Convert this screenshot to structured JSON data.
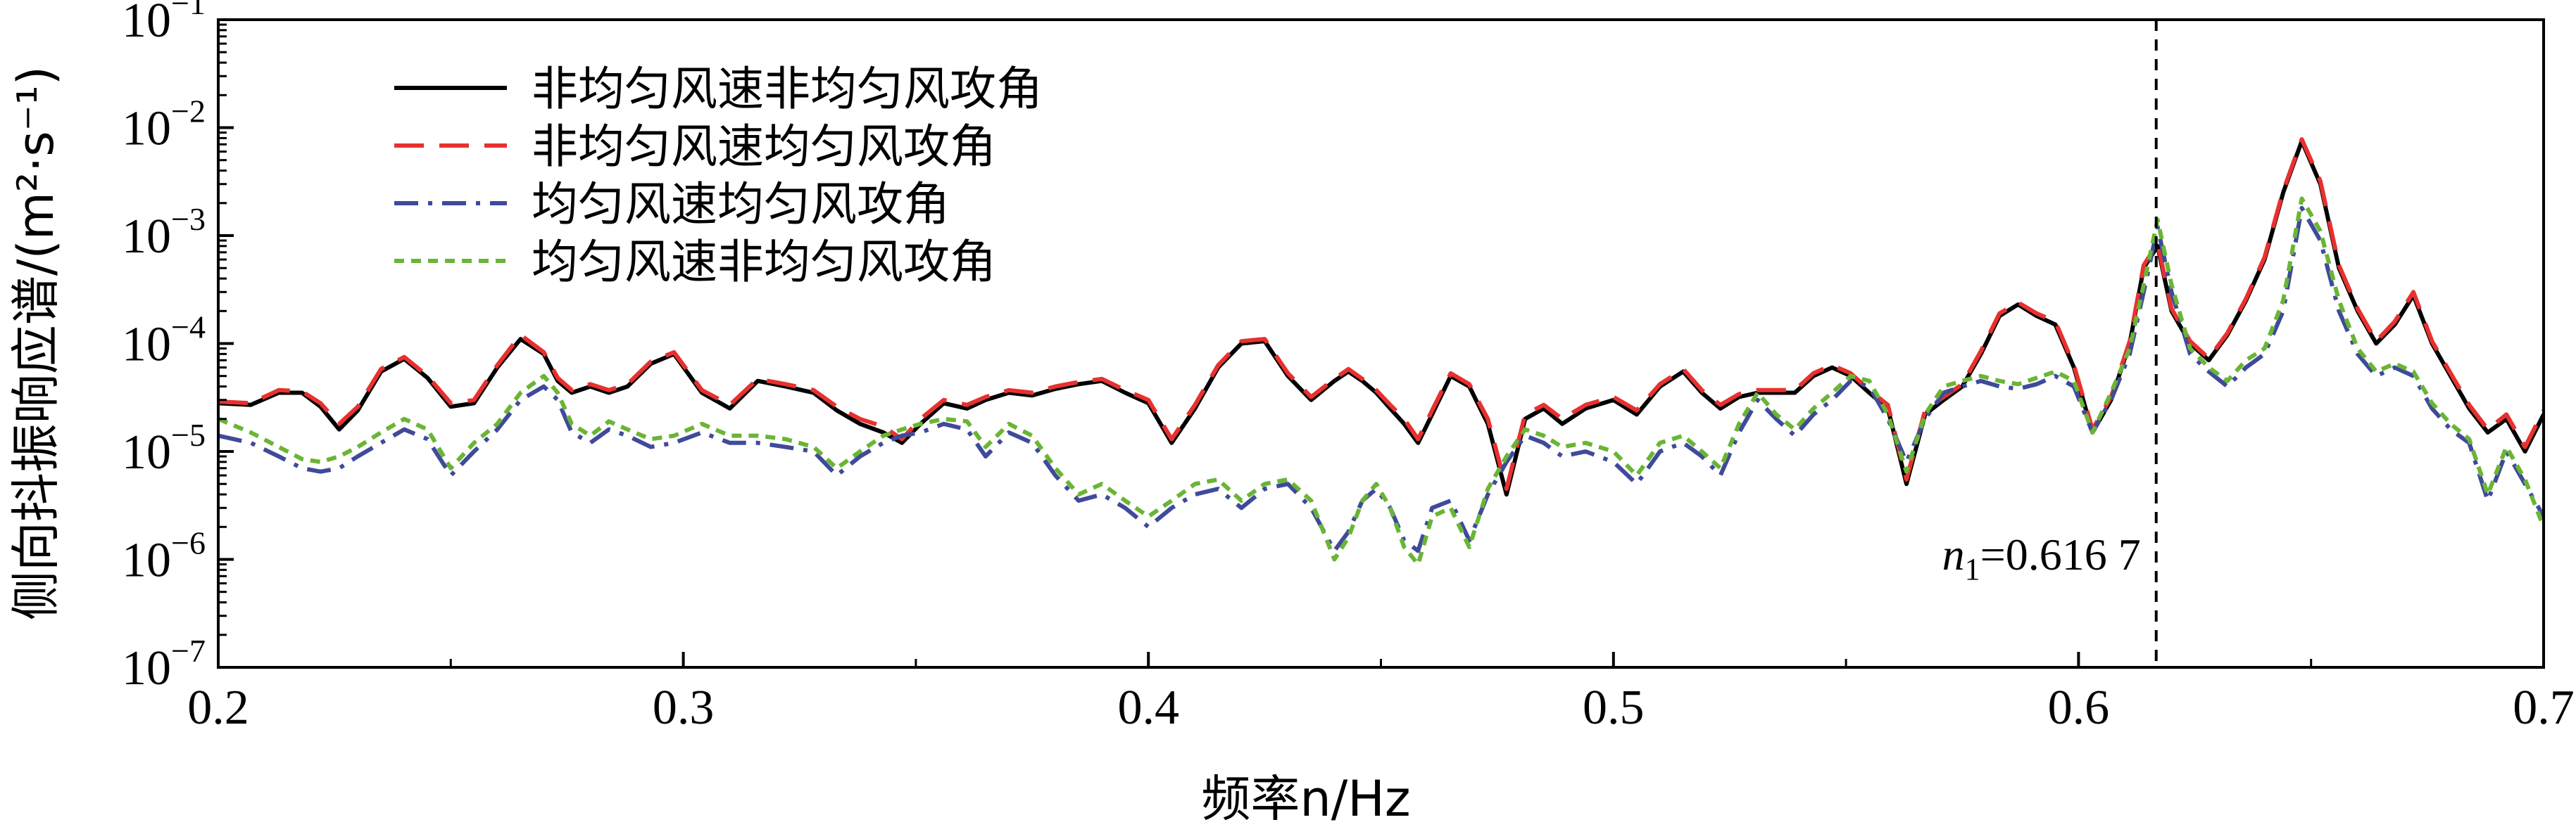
{
  "chart_data": {
    "type": "line",
    "xlabel": "频率n/Hz",
    "ylabel": "侧向抖振响应谱/(m²·s⁻¹)",
    "xlim": [
      0.2,
      0.7
    ],
    "ylim": [
      1e-07,
      0.1
    ],
    "yscale": "log",
    "xticks": [
      "0.2",
      "0.3",
      "0.4",
      "0.5",
      "0.6",
      "0.7"
    ],
    "yticks": [
      {
        "base": "10",
        "exp": "−7"
      },
      {
        "base": "10",
        "exp": "−6"
      },
      {
        "base": "10",
        "exp": "−5"
      },
      {
        "base": "10",
        "exp": "−4"
      },
      {
        "base": "10",
        "exp": "−3"
      },
      {
        "base": "10",
        "exp": "−2"
      },
      {
        "base": "10",
        "exp": "−1"
      }
    ],
    "legend_position": "top-left",
    "grid": false,
    "annotation": {
      "text_n": "n",
      "text_sub": "1",
      "text_value": "=0.616 7",
      "x": 0.6167
    },
    "series": [
      {
        "name": "非均匀风速非均匀风攻角",
        "color": "#000000",
        "dash": "solid",
        "x": [
          0.2,
          0.207,
          0.213,
          0.218,
          0.222,
          0.226,
          0.23,
          0.235,
          0.24,
          0.245,
          0.25,
          0.255,
          0.26,
          0.265,
          0.27,
          0.273,
          0.276,
          0.28,
          0.284,
          0.288,
          0.293,
          0.298,
          0.304,
          0.31,
          0.316,
          0.322,
          0.328,
          0.333,
          0.338,
          0.343,
          0.347,
          0.351,
          0.356,
          0.361,
          0.365,
          0.37,
          0.375,
          0.38,
          0.385,
          0.39,
          0.395,
          0.4,
          0.405,
          0.41,
          0.415,
          0.42,
          0.425,
          0.43,
          0.435,
          0.44,
          0.443,
          0.446,
          0.449,
          0.452,
          0.455,
          0.458,
          0.461,
          0.465,
          0.469,
          0.473,
          0.477,
          0.481,
          0.485,
          0.489,
          0.494,
          0.5,
          0.505,
          0.51,
          0.515,
          0.519,
          0.523,
          0.527,
          0.531,
          0.535,
          0.539,
          0.543,
          0.547,
          0.551,
          0.555,
          0.559,
          0.563,
          0.567,
          0.571,
          0.575,
          0.579,
          0.583,
          0.587,
          0.591,
          0.595,
          0.599,
          0.603,
          0.607,
          0.611,
          0.614,
          0.617,
          0.62,
          0.624,
          0.628,
          0.632,
          0.636,
          0.64,
          0.644,
          0.648,
          0.652,
          0.656,
          0.66,
          0.664,
          0.668,
          0.672,
          0.676,
          0.68,
          0.684,
          0.688,
          0.692,
          0.696,
          0.7
        ],
        "values": [
          2.8e-05,
          2.7e-05,
          3.5e-05,
          3.5e-05,
          2.6e-05,
          1.6e-05,
          2.4e-05,
          5.5e-05,
          7.2e-05,
          4.8e-05,
          2.6e-05,
          2.8e-05,
          6e-05,
          0.00011,
          8e-05,
          4.5e-05,
          3.5e-05,
          4e-05,
          3.5e-05,
          4e-05,
          6.5e-05,
          8e-05,
          3.5e-05,
          2.5e-05,
          4.5e-05,
          4e-05,
          3.5e-05,
          2.4e-05,
          1.8e-05,
          1.5e-05,
          1.2e-05,
          1.8e-05,
          2.8e-05,
          2.5e-05,
          3e-05,
          3.5e-05,
          3.3e-05,
          3.8e-05,
          4.2e-05,
          4.5e-05,
          3.5e-05,
          2.8e-05,
          1.2e-05,
          2.5e-05,
          6e-05,
          0.0001,
          0.000105,
          5e-05,
          3e-05,
          4.5e-05,
          5.5e-05,
          4.5e-05,
          3.5e-05,
          2.5e-05,
          1.8e-05,
          1.2e-05,
          2.2e-05,
          5e-05,
          4e-05,
          1.8e-05,
          4e-06,
          2e-05,
          2.5e-05,
          1.8e-05,
          2.5e-05,
          3e-05,
          2.2e-05,
          4e-05,
          5.5e-05,
          3.5e-05,
          2.5e-05,
          3.2e-05,
          3.5e-05,
          3.5e-05,
          3.5e-05,
          5e-05,
          6e-05,
          5e-05,
          3.5e-05,
          2.5e-05,
          5e-06,
          2.2e-05,
          3e-05,
          4e-05,
          8e-05,
          0.00018,
          0.00023,
          0.00018,
          0.00015,
          6e-05,
          1.5e-05,
          3e-05,
          0.0001,
          0.0005,
          0.0008,
          0.0002,
          0.0001,
          7e-05,
          0.00012,
          0.00025,
          0.0006,
          0.0025,
          0.0075,
          0.003,
          0.0005,
          0.0002,
          0.0001,
          0.00015,
          0.00028,
          0.0001,
          5e-05,
          2.5e-05,
          1.5e-05,
          2e-05,
          1e-05,
          2.2e-05
        ]
      },
      {
        "name": "非均匀风速均匀风攻角",
        "color": "#e8312f",
        "dash": "long-dash",
        "x": [
          0.2,
          0.207,
          0.213,
          0.218,
          0.222,
          0.226,
          0.23,
          0.235,
          0.24,
          0.245,
          0.25,
          0.255,
          0.26,
          0.265,
          0.27,
          0.273,
          0.276,
          0.28,
          0.284,
          0.288,
          0.293,
          0.298,
          0.304,
          0.31,
          0.316,
          0.322,
          0.328,
          0.333,
          0.338,
          0.343,
          0.347,
          0.351,
          0.356,
          0.361,
          0.365,
          0.37,
          0.375,
          0.38,
          0.385,
          0.39,
          0.395,
          0.4,
          0.405,
          0.41,
          0.415,
          0.42,
          0.425,
          0.43,
          0.435,
          0.44,
          0.443,
          0.446,
          0.449,
          0.452,
          0.455,
          0.458,
          0.461,
          0.465,
          0.469,
          0.473,
          0.477,
          0.481,
          0.485,
          0.489,
          0.494,
          0.5,
          0.505,
          0.51,
          0.515,
          0.519,
          0.523,
          0.527,
          0.531,
          0.535,
          0.539,
          0.543,
          0.547,
          0.551,
          0.555,
          0.559,
          0.563,
          0.567,
          0.571,
          0.575,
          0.579,
          0.583,
          0.587,
          0.591,
          0.595,
          0.599,
          0.603,
          0.607,
          0.611,
          0.614,
          0.617,
          0.62,
          0.624,
          0.628,
          0.632,
          0.636,
          0.64,
          0.644,
          0.648,
          0.652,
          0.656,
          0.66,
          0.664,
          0.668,
          0.672,
          0.676,
          0.68,
          0.684,
          0.688,
          0.692,
          0.696,
          0.7
        ],
        "values": [
          2.9e-05,
          2.8e-05,
          3.7e-05,
          3.6e-05,
          2.8e-05,
          1.8e-05,
          2.6e-05,
          5.8e-05,
          7.5e-05,
          5e-05,
          2.8e-05,
          3e-05,
          6.3e-05,
          0.00012,
          8.3e-05,
          4.8e-05,
          3.7e-05,
          4.2e-05,
          3.7e-05,
          4.2e-05,
          6.8e-05,
          8.3e-05,
          3.7e-05,
          2.7e-05,
          4.7e-05,
          4.2e-05,
          3.7e-05,
          2.6e-05,
          2e-05,
          1.7e-05,
          1.3e-05,
          2e-05,
          3e-05,
          2.7e-05,
          3.2e-05,
          3.7e-05,
          3.5e-05,
          4e-05,
          4.4e-05,
          4.7e-05,
          3.7e-05,
          3e-05,
          1.3e-05,
          2.7e-05,
          6.3e-05,
          0.000105,
          0.00011,
          5.3e-05,
          3.2e-05,
          4.7e-05,
          5.8e-05,
          4.7e-05,
          3.7e-05,
          2.7e-05,
          2e-05,
          1.3e-05,
          2.4e-05,
          5.3e-05,
          4.2e-05,
          2e-05,
          4.5e-06,
          2.2e-05,
          2.7e-05,
          2e-05,
          2.7e-05,
          3.2e-05,
          2.4e-05,
          4.2e-05,
          5.8e-05,
          3.7e-05,
          2.7e-05,
          3.4e-05,
          3.7e-05,
          3.7e-05,
          3.7e-05,
          5.3e-05,
          6.3e-05,
          5.3e-05,
          3.7e-05,
          2.7e-05,
          5.5e-06,
          2.4e-05,
          3.2e-05,
          4.2e-05,
          8.5e-05,
          0.00019,
          0.00024,
          0.00019,
          0.00016,
          6.3e-05,
          1.6e-05,
          3.2e-05,
          0.000105,
          0.00053,
          0.00085,
          0.00021,
          0.000105,
          7.3e-05,
          0.000125,
          0.00026,
          0.00063,
          0.0026,
          0.0078,
          0.0032,
          0.00053,
          0.00021,
          0.000105,
          0.00016,
          0.0003,
          0.000105,
          5.3e-05,
          2.7e-05,
          1.6e-05,
          2.2e-05,
          1.1e-05,
          2.4e-05
        ]
      },
      {
        "name": "均匀风速均匀风攻角",
        "color": "#3f4a9a",
        "dash": "dash-dot",
        "x": [
          0.2,
          0.207,
          0.213,
          0.218,
          0.222,
          0.226,
          0.23,
          0.235,
          0.24,
          0.245,
          0.25,
          0.255,
          0.26,
          0.265,
          0.27,
          0.273,
          0.276,
          0.28,
          0.284,
          0.288,
          0.293,
          0.298,
          0.304,
          0.31,
          0.316,
          0.322,
          0.328,
          0.333,
          0.338,
          0.343,
          0.347,
          0.351,
          0.356,
          0.361,
          0.365,
          0.37,
          0.375,
          0.38,
          0.385,
          0.39,
          0.395,
          0.4,
          0.405,
          0.41,
          0.415,
          0.42,
          0.425,
          0.43,
          0.435,
          0.44,
          0.443,
          0.446,
          0.449,
          0.452,
          0.455,
          0.458,
          0.461,
          0.465,
          0.469,
          0.473,
          0.477,
          0.481,
          0.485,
          0.489,
          0.494,
          0.5,
          0.505,
          0.51,
          0.515,
          0.519,
          0.523,
          0.527,
          0.531,
          0.535,
          0.539,
          0.543,
          0.547,
          0.551,
          0.555,
          0.559,
          0.563,
          0.567,
          0.571,
          0.575,
          0.579,
          0.583,
          0.587,
          0.591,
          0.595,
          0.599,
          0.603,
          0.607,
          0.611,
          0.614,
          0.617,
          0.62,
          0.624,
          0.628,
          0.632,
          0.636,
          0.64,
          0.644,
          0.648,
          0.652,
          0.656,
          0.66,
          0.664,
          0.668,
          0.672,
          0.676,
          0.68,
          0.684,
          0.688,
          0.692,
          0.696,
          0.7
        ],
        "values": [
          1.4e-05,
          1.2e-05,
          9e-06,
          7e-06,
          6.5e-06,
          7e-06,
          9e-06,
          1.2e-05,
          1.6e-05,
          1.3e-05,
          6e-06,
          1e-05,
          1.6e-05,
          3e-05,
          4e-05,
          3e-05,
          1.5e-05,
          1.2e-05,
          1.6e-05,
          1.4e-05,
          1.1e-05,
          1.2e-05,
          1.5e-05,
          1.2e-05,
          1.2e-05,
          1.1e-05,
          1e-05,
          6e-06,
          9e-06,
          1.2e-05,
          1.4e-05,
          1.5e-05,
          1.8e-05,
          1.6e-05,
          9e-06,
          1.5e-05,
          1.2e-05,
          6e-06,
          3.5e-06,
          4e-06,
          3e-06,
          2e-06,
          3e-06,
          4e-06,
          4.5e-06,
          3e-06,
          4.5e-06,
          5e-06,
          3e-06,
          1.2e-06,
          1.8e-06,
          3.5e-06,
          4.5e-06,
          3e-06,
          1.5e-06,
          1.2e-06,
          3e-06,
          3.5e-06,
          1.5e-06,
          4e-06,
          8e-06,
          1.4e-05,
          1.2e-05,
          9e-06,
          1e-05,
          8e-06,
          5e-06,
          1e-05,
          1.2e-05,
          9e-06,
          6e-06,
          1.5e-05,
          3e-05,
          2e-05,
          1.4e-05,
          2.2e-05,
          3e-05,
          4.5e-05,
          4e-05,
          2e-05,
          8e-06,
          2e-05,
          3.5e-05,
          4e-05,
          4.5e-05,
          4e-05,
          3.8e-05,
          4.2e-05,
          5e-05,
          4e-05,
          1.5e-05,
          3e-05,
          8e-05,
          0.0003,
          0.0012,
          0.0003,
          8e-05,
          5.5e-05,
          4e-05,
          6e-05,
          8e-05,
          0.0002,
          0.0018,
          0.0009,
          0.0002,
          8e-05,
          5e-05,
          6e-05,
          5e-05,
          2.5e-05,
          1.6e-05,
          1.2e-05,
          3.5e-06,
          1e-05,
          5e-06,
          2.5e-06
        ]
      },
      {
        "name": "均匀风速非均匀风攻角",
        "color": "#6ab535",
        "dash": "short-dash",
        "x": [
          0.2,
          0.207,
          0.213,
          0.218,
          0.222,
          0.226,
          0.23,
          0.235,
          0.24,
          0.245,
          0.25,
          0.255,
          0.26,
          0.265,
          0.27,
          0.273,
          0.276,
          0.28,
          0.284,
          0.288,
          0.293,
          0.298,
          0.304,
          0.31,
          0.316,
          0.322,
          0.328,
          0.333,
          0.338,
          0.343,
          0.347,
          0.351,
          0.356,
          0.361,
          0.365,
          0.37,
          0.375,
          0.38,
          0.385,
          0.39,
          0.395,
          0.4,
          0.405,
          0.41,
          0.415,
          0.42,
          0.425,
          0.43,
          0.435,
          0.44,
          0.443,
          0.446,
          0.449,
          0.452,
          0.455,
          0.458,
          0.461,
          0.465,
          0.469,
          0.473,
          0.477,
          0.481,
          0.485,
          0.489,
          0.494,
          0.5,
          0.505,
          0.51,
          0.515,
          0.519,
          0.523,
          0.527,
          0.531,
          0.535,
          0.539,
          0.543,
          0.547,
          0.551,
          0.555,
          0.559,
          0.563,
          0.567,
          0.571,
          0.575,
          0.579,
          0.583,
          0.587,
          0.591,
          0.595,
          0.599,
          0.603,
          0.607,
          0.611,
          0.614,
          0.617,
          0.62,
          0.624,
          0.628,
          0.632,
          0.636,
          0.64,
          0.644,
          0.648,
          0.652,
          0.656,
          0.66,
          0.664,
          0.668,
          0.672,
          0.676,
          0.68,
          0.684,
          0.688,
          0.692,
          0.696,
          0.7
        ],
        "values": [
          2e-05,
          1.5e-05,
          1.1e-05,
          8.5e-06,
          8e-06,
          9e-06,
          1.1e-05,
          1.5e-05,
          2e-05,
          1.6e-05,
          7e-06,
          1.2e-05,
          1.8e-05,
          3.5e-05,
          5e-05,
          3.5e-05,
          1.8e-05,
          1.4e-05,
          1.9e-05,
          1.6e-05,
          1.3e-05,
          1.4e-05,
          1.8e-05,
          1.4e-05,
          1.4e-05,
          1.3e-05,
          1.1e-05,
          7e-06,
          1e-05,
          1.4e-05,
          1.6e-05,
          1.8e-05,
          2e-05,
          1.9e-05,
          1.1e-05,
          1.8e-05,
          1.4e-05,
          7e-06,
          4e-06,
          5e-06,
          3.5e-06,
          2.5e-06,
          3.5e-06,
          5e-06,
          5.5e-06,
          3.5e-06,
          5e-06,
          5.5e-06,
          3.5e-06,
          1e-06,
          1.6e-06,
          3.5e-06,
          5e-06,
          3e-06,
          1.3e-06,
          9e-07,
          2.5e-06,
          3e-06,
          1.3e-06,
          4.5e-06,
          9e-06,
          1.6e-05,
          1.4e-05,
          1.1e-05,
          1.2e-05,
          1e-05,
          6e-06,
          1.2e-05,
          1.4e-05,
          1e-05,
          7e-06,
          1.8e-05,
          3.5e-05,
          2.2e-05,
          1.6e-05,
          2.5e-05,
          3.5e-05,
          5e-05,
          4.5e-05,
          2.2e-05,
          6.5e-06,
          2.2e-05,
          4e-05,
          4.5e-05,
          5e-05,
          4.5e-05,
          4.2e-05,
          4.8e-05,
          5.5e-05,
          4.5e-05,
          1.5e-05,
          3.5e-05,
          9e-05,
          0.00035,
          0.0014,
          0.00035,
          9e-05,
          6e-05,
          4.5e-05,
          7e-05,
          9e-05,
          0.00025,
          0.0022,
          0.0011,
          0.00025,
          9e-05,
          5.5e-05,
          6.5e-05,
          5.5e-05,
          2.8e-05,
          1.8e-05,
          1.3e-05,
          4e-06,
          1.1e-05,
          5.5e-06,
          2e-06
        ]
      }
    ]
  }
}
